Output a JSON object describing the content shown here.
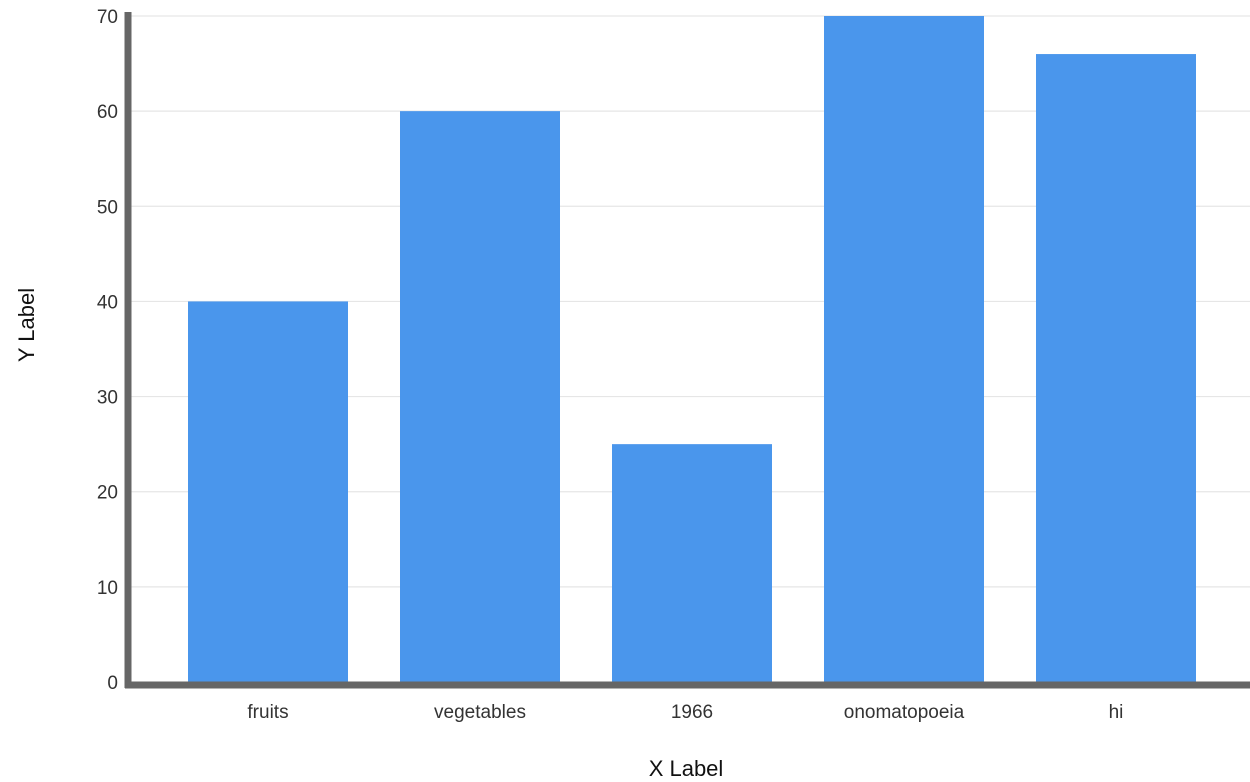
{
  "chart_data": {
    "type": "bar",
    "title": "",
    "xlabel": "X Label",
    "ylabel": "Y Label",
    "categories": [
      "fruits",
      "vegetables",
      "1966",
      "onomatopoeia",
      "hi"
    ],
    "values": [
      40,
      60,
      25,
      70,
      66
    ],
    "ylim": [
      0,
      70
    ],
    "yticks": [
      "0",
      "10",
      "20",
      "30",
      "40",
      "50",
      "60",
      "70"
    ],
    "grid": true,
    "legend": "none",
    "colors": {
      "bar": "#4A96EC",
      "axis": "#666666",
      "grid": "#E6E6E6"
    }
  }
}
